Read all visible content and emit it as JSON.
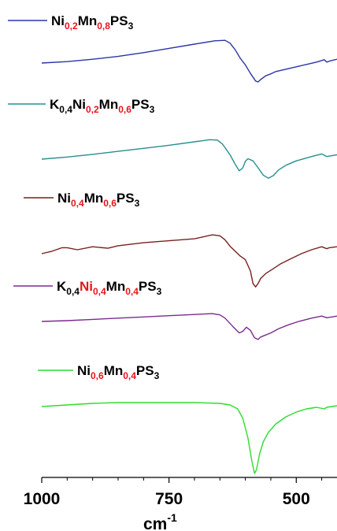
{
  "chart_data": {
    "type": "line",
    "title": "",
    "xlabel": "cm",
    "xlabel_superscript": "-1",
    "ylabel": "",
    "xlim": [
      1000,
      420
    ],
    "x_reversed": true,
    "x_ticks": [
      1000,
      750,
      500
    ],
    "x_tick_labels": [
      "1000",
      "750",
      "500"
    ],
    "grid": false,
    "y_axis_visible": false,
    "legend_placement": "above each curve",
    "series": [
      {
        "name": "Ni0,2Mn0,8PS3",
        "color": "#2b35a6",
        "label_parts": [
          {
            "t": "Ni",
            "sub": false,
            "red": false
          },
          {
            "t": "0,2",
            "sub": true,
            "red": true
          },
          {
            "t": "Mn",
            "sub": false,
            "red": false
          },
          {
            "t": "0,8",
            "sub": true,
            "red": true
          },
          {
            "t": "PS",
            "sub": false,
            "red": false
          },
          {
            "t": "3",
            "sub": true,
            "red": false
          }
        ],
        "x": [
          1000,
          950,
          900,
          850,
          800,
          750,
          700,
          660,
          640,
          630,
          620,
          610,
          600,
          590,
          580,
          575,
          570,
          560,
          550,
          540,
          520,
          500,
          480,
          460,
          445,
          440,
          435,
          420
        ],
        "y": [
          0.0,
          0.03,
          0.08,
          0.14,
          0.22,
          0.31,
          0.4,
          0.47,
          0.48,
          0.42,
          0.28,
          0.1,
          -0.04,
          -0.22,
          -0.38,
          -0.4,
          -0.35,
          -0.27,
          -0.23,
          -0.18,
          -0.13,
          -0.08,
          -0.03,
          0.02,
          0.07,
          0.02,
          0.04,
          0.08
        ]
      },
      {
        "name": "K0,4Ni0,2Mn0,6PS3",
        "color": "#278f8f",
        "label_parts": [
          {
            "t": "K",
            "sub": false,
            "red": false
          },
          {
            "t": "0,4",
            "sub": true,
            "red": false
          },
          {
            "t": "Ni",
            "sub": false,
            "red": false
          },
          {
            "t": "0,2",
            "sub": true,
            "red": true
          },
          {
            "t": "Mn",
            "sub": false,
            "red": false
          },
          {
            "t": "0,6",
            "sub": true,
            "red": true
          },
          {
            "t": "PS",
            "sub": false,
            "red": false
          },
          {
            "t": "3",
            "sub": true,
            "red": false
          }
        ],
        "x": [
          1000,
          950,
          900,
          850,
          800,
          750,
          700,
          670,
          655,
          645,
          630,
          620,
          612,
          605,
          600,
          595,
          585,
          575,
          565,
          555,
          545,
          535,
          520,
          500,
          470,
          450,
          440,
          430,
          420
        ],
        "y": [
          0.0,
          0.05,
          0.11,
          0.18,
          0.25,
          0.32,
          0.4,
          0.45,
          0.44,
          0.35,
          0.1,
          -0.12,
          -0.27,
          -0.2,
          -0.05,
          0.01,
          -0.04,
          -0.2,
          -0.37,
          -0.44,
          -0.38,
          -0.25,
          -0.14,
          -0.04,
          0.06,
          0.12,
          0.06,
          0.08,
          0.1
        ]
      },
      {
        "name": "Ni0,4Mn0,6PS3",
        "color": "#7a1f1f",
        "label_parts": [
          {
            "t": "Ni",
            "sub": false,
            "red": false
          },
          {
            "t": "0,4",
            "sub": true,
            "red": true
          },
          {
            "t": "Mn",
            "sub": false,
            "red": false
          },
          {
            "t": "0,6",
            "sub": true,
            "red": true
          },
          {
            "t": "PS",
            "sub": false,
            "red": false
          },
          {
            "t": "3",
            "sub": true,
            "red": false
          }
        ],
        "x": [
          1000,
          980,
          960,
          950,
          930,
          900,
          870,
          850,
          800,
          750,
          700,
          665,
          650,
          640,
          630,
          620,
          610,
          600,
          590,
          585,
          580,
          575,
          570,
          560,
          545,
          530,
          510,
          490,
          470,
          450,
          440,
          435,
          420
        ],
        "y": [
          0.0,
          0.05,
          0.12,
          0.12,
          0.08,
          0.14,
          0.11,
          0.16,
          0.22,
          0.26,
          0.3,
          0.38,
          0.36,
          0.28,
          0.15,
          0.05,
          -0.05,
          -0.12,
          -0.35,
          -0.6,
          -0.67,
          -0.6,
          -0.5,
          -0.4,
          -0.3,
          -0.2,
          -0.1,
          0.0,
          0.08,
          0.14,
          0.1,
          0.12,
          0.14
        ]
      },
      {
        "name": "K0,4Ni0,4Mn0,4PS3",
        "color": "#7a2b8f",
        "label_parts": [
          {
            "t": "K",
            "sub": false,
            "red": false
          },
          {
            "t": "0,4",
            "sub": true,
            "red": false
          },
          {
            "t": "Ni",
            "sub": false,
            "red": true
          },
          {
            "t": "0,4",
            "sub": true,
            "red": true
          },
          {
            "t": "Mn",
            "sub": false,
            "red": false
          },
          {
            "t": "0,4",
            "sub": true,
            "red": true
          },
          {
            "t": "PS",
            "sub": false,
            "red": false
          },
          {
            "t": "3",
            "sub": true,
            "red": false
          }
        ],
        "x": [
          1000,
          950,
          900,
          850,
          800,
          750,
          700,
          665,
          650,
          640,
          625,
          612,
          605,
          598,
          590,
          582,
          575,
          570,
          562,
          550,
          535,
          515,
          495,
          470,
          450,
          440,
          430,
          420
        ],
        "y": [
          0.0,
          0.02,
          0.05,
          0.08,
          0.11,
          0.14,
          0.17,
          0.19,
          0.16,
          0.08,
          -0.12,
          -0.28,
          -0.24,
          -0.14,
          -0.22,
          -0.4,
          -0.44,
          -0.38,
          -0.34,
          -0.28,
          -0.18,
          -0.08,
          0.0,
          0.08,
          0.13,
          0.09,
          0.11,
          0.13
        ]
      },
      {
        "name": "Ni0,6Mn0,4PS3",
        "color": "#2edc2e",
        "label_parts": [
          {
            "t": "Ni",
            "sub": false,
            "red": false
          },
          {
            "t": "0,6",
            "sub": true,
            "red": true
          },
          {
            "t": "Mn",
            "sub": false,
            "red": false
          },
          {
            "t": "0,4",
            "sub": true,
            "red": true
          },
          {
            "t": "PS",
            "sub": false,
            "red": false
          },
          {
            "t": "3",
            "sub": true,
            "red": false
          }
        ],
        "x": [
          1000,
          950,
          900,
          850,
          800,
          750,
          700,
          650,
          630,
          615,
          605,
          595,
          587,
          582,
          578,
          572,
          565,
          555,
          540,
          520,
          500,
          480,
          460,
          445,
          440,
          430,
          420
        ],
        "y": [
          0.0,
          0.02,
          0.04,
          0.05,
          0.05,
          0.05,
          0.05,
          0.04,
          0.02,
          -0.03,
          -0.15,
          -0.4,
          -0.7,
          -0.85,
          -0.8,
          -0.6,
          -0.45,
          -0.33,
          -0.22,
          -0.13,
          -0.07,
          -0.03,
          -0.01,
          -0.03,
          -0.01,
          0.0,
          0.01
        ]
      }
    ]
  }
}
